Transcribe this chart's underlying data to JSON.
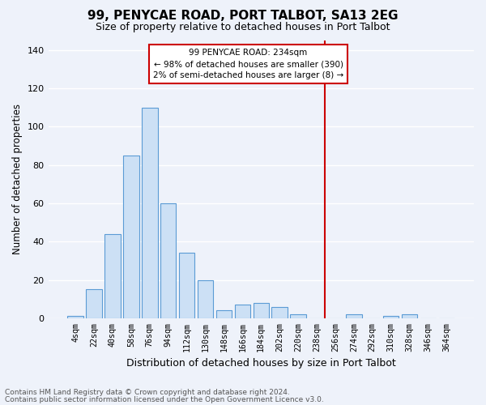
{
  "title": "99, PENYCAE ROAD, PORT TALBOT, SA13 2EG",
  "subtitle": "Size of property relative to detached houses in Port Talbot",
  "xlabel": "Distribution of detached houses by size in Port Talbot",
  "ylabel": "Number of detached properties",
  "categories": [
    "4sqm",
    "22sqm",
    "40sqm",
    "58sqm",
    "76sqm",
    "94sqm",
    "112sqm",
    "130sqm",
    "148sqm",
    "166sqm",
    "184sqm",
    "202sqm",
    "220sqm",
    "238sqm",
    "256sqm",
    "274sqm",
    "292sqm",
    "310sqm",
    "328sqm",
    "346sqm",
    "364sqm"
  ],
  "values": [
    1,
    15,
    44,
    85,
    110,
    60,
    34,
    20,
    4,
    7,
    8,
    6,
    2,
    0,
    0,
    2,
    0,
    1,
    2,
    0,
    0
  ],
  "bar_color": "#cce0f5",
  "bar_edge_color": "#5b9bd5",
  "vline_category": "238sqm",
  "vline_color": "#cc0000",
  "annotation_title": "99 PENYCAE ROAD: 234sqm",
  "annotation_line1": "← 98% of detached houses are smaller (390)",
  "annotation_line2": "2% of semi-detached houses are larger (8) →",
  "annotation_box_edgecolor": "#cc0000",
  "ylim": [
    0,
    145
  ],
  "yticks": [
    0,
    20,
    40,
    60,
    80,
    100,
    120,
    140
  ],
  "footer1": "Contains HM Land Registry data © Crown copyright and database right 2024.",
  "footer2": "Contains public sector information licensed under the Open Government Licence v3.0.",
  "bg_color": "#eef2fa",
  "grid_color": "#ffffff"
}
